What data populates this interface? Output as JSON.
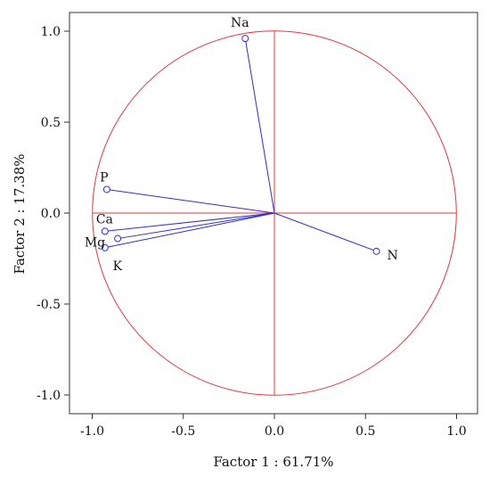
{
  "chart_data": {
    "type": "scatter",
    "xlabel": "Factor 1 : 61.71%",
    "ylabel": "Factor 2 : 17.38%",
    "xlim": [
      -1.0,
      1.0
    ],
    "ylim": [
      -1.0,
      1.0
    ],
    "x_ticks": [
      "-1.0",
      "-0.5",
      "0.0",
      "0.5",
      "1.0"
    ],
    "y_ticks": [
      "1.0",
      "0.5",
      "0.0",
      "-0.5",
      "-1.0"
    ],
    "points": [
      {
        "label": "Na",
        "x": -0.16,
        "y": 0.96
      },
      {
        "label": "P",
        "x": -0.92,
        "y": 0.13
      },
      {
        "label": "Ca",
        "x": -0.93,
        "y": -0.1
      },
      {
        "label": "Mg",
        "x": -0.86,
        "y": -0.14
      },
      {
        "label": "K",
        "x": -0.93,
        "y": -0.19
      },
      {
        "label": "N",
        "x": 0.56,
        "y": -0.21
      }
    ],
    "unit_circle": true,
    "grid": false,
    "colors": {
      "circle": "#e0383e",
      "axes_zero": "#e0383e",
      "vectors": "#2d2dd6",
      "frame": "#333333"
    }
  }
}
